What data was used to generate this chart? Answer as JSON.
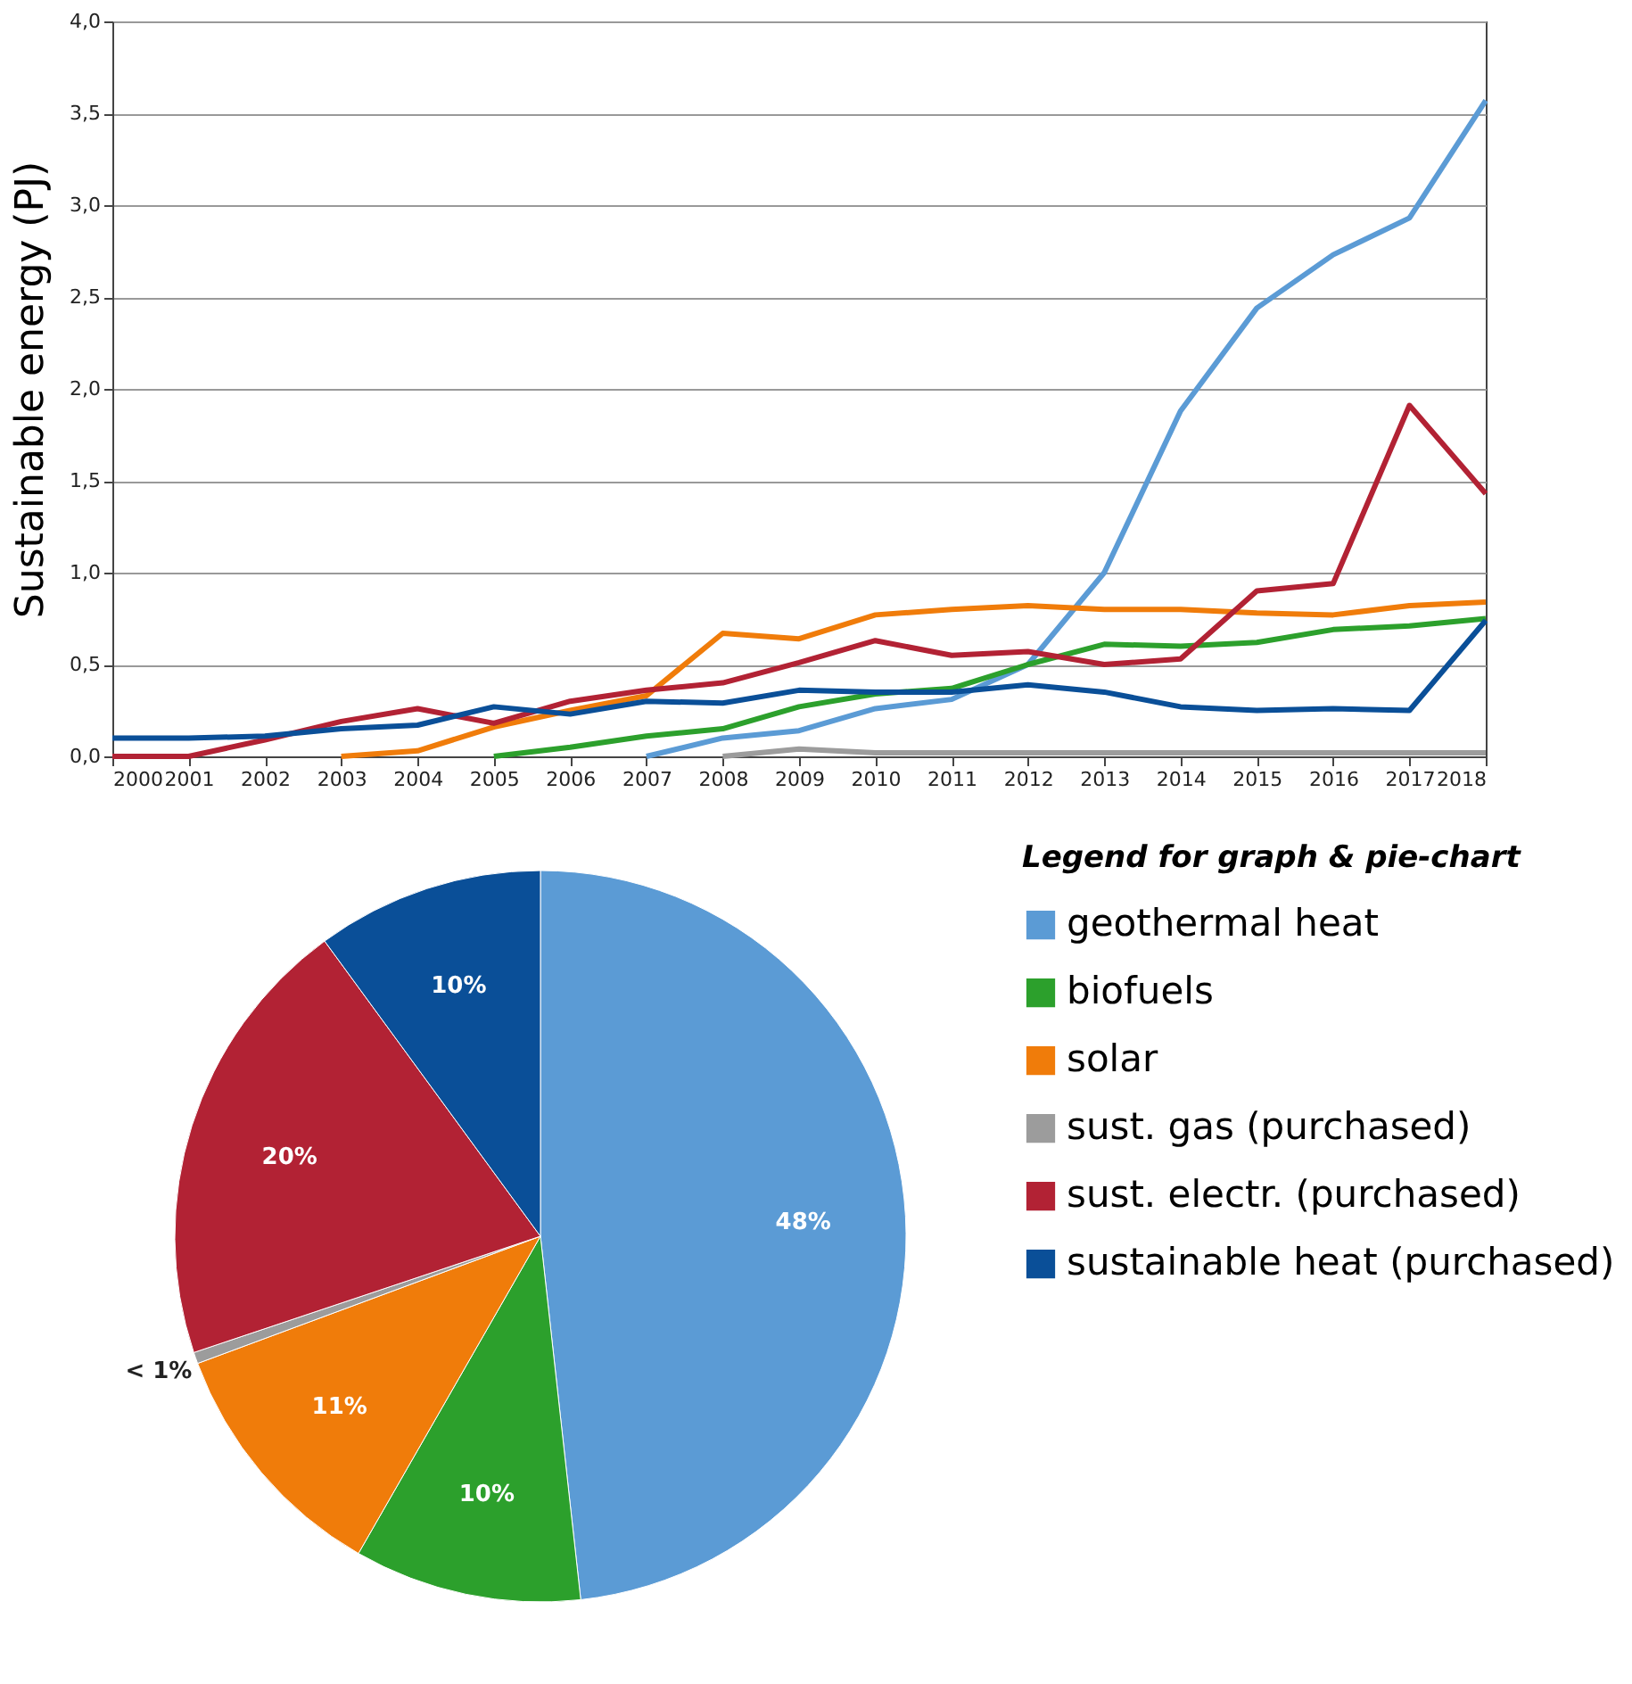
{
  "chart_data": [
    {
      "type": "line",
      "ylabel": "Sustainable energy (PJ)",
      "x": [
        2000,
        2001,
        2002,
        2003,
        2004,
        2005,
        2006,
        2007,
        2008,
        2009,
        2010,
        2011,
        2012,
        2013,
        2014,
        2015,
        2016,
        2017,
        2018
      ],
      "series": [
        {
          "name": "geothermal heat",
          "color": "#5b9bd5",
          "values": [
            null,
            null,
            null,
            null,
            null,
            null,
            null,
            0,
            0.1,
            0.14,
            0.26,
            0.31,
            0.5,
            1.0,
            1.88,
            2.44,
            2.73,
            2.93,
            3.57
          ]
        },
        {
          "name": "biofuels",
          "color": "#2ca02c",
          "values": [
            null,
            null,
            null,
            null,
            null,
            0,
            0.05,
            0.11,
            0.15,
            0.27,
            0.34,
            0.37,
            0.5,
            0.61,
            0.6,
            0.62,
            0.69,
            0.71,
            0.75
          ]
        },
        {
          "name": "solar",
          "color": "#f07c0a",
          "values": [
            null,
            null,
            null,
            0,
            0.03,
            0.16,
            0.25,
            0.33,
            0.67,
            0.64,
            0.77,
            0.8,
            0.82,
            0.8,
            0.8,
            0.78,
            0.77,
            0.82,
            0.84
          ]
        },
        {
          "name": "sust. gas (purchased)",
          "color": "#9c9c9c",
          "values": [
            null,
            null,
            null,
            null,
            null,
            null,
            null,
            null,
            0,
            0.04,
            0.02,
            0.02,
            0.02,
            0.02,
            0.02,
            0.02,
            0.02,
            0.02,
            0.02
          ]
        },
        {
          "name": "sust. electr. (purchased)",
          "color": "#b22234",
          "values": [
            0,
            0,
            0.09,
            0.19,
            0.26,
            0.18,
            0.3,
            0.36,
            0.4,
            0.51,
            0.63,
            0.55,
            0.57,
            0.5,
            0.53,
            0.9,
            0.94,
            1.91,
            1.43
          ]
        },
        {
          "name": "sustainable heat (purchased)",
          "color": "#0a4f98",
          "values": [
            0.1,
            0.1,
            0.11,
            0.15,
            0.17,
            0.27,
            0.23,
            0.3,
            0.29,
            0.36,
            0.35,
            0.35,
            0.39,
            0.35,
            0.27,
            0.25,
            0.26,
            0.25,
            0.74
          ]
        }
      ],
      "xlim": [
        2000,
        2018
      ],
      "xticks": [
        2000,
        2001,
        2002,
        2003,
        2004,
        2005,
        2006,
        2007,
        2008,
        2009,
        2010,
        2011,
        2012,
        2013,
        2014,
        2015,
        2016,
        2017,
        2018
      ],
      "ylim": [
        0,
        4
      ],
      "yticks": [
        {
          "value": 0,
          "label": "0,0"
        },
        {
          "value": 0.5,
          "label": "0,5"
        },
        {
          "value": 1,
          "label": "1,0"
        },
        {
          "value": 1.5,
          "label": "1,5"
        },
        {
          "value": 2,
          "label": "2,0"
        },
        {
          "value": 2.5,
          "label": "2,5"
        },
        {
          "value": 3,
          "label": "3,0"
        },
        {
          "value": 3.5,
          "label": "3,5"
        },
        {
          "value": 4,
          "label": "4,0"
        }
      ],
      "grid": "y",
      "line_style": "solid",
      "marker": "none",
      "legend": "bottom right",
      "legend_title": "Legend for graph & pie-chart"
    },
    {
      "type": "pie",
      "categories": [
        null,
        null,
        null,
        null,
        null,
        null
      ],
      "values": [
        48,
        10,
        11,
        0.5,
        20,
        10
      ],
      "value_labels": [
        "48%",
        "10%",
        "11%",
        "< 1%",
        "20%",
        "10%"
      ],
      "colors": [
        "#5b9bd5",
        "#2ca02c",
        "#f07c0a",
        "#9c9c9c",
        "#b22234",
        "#0a4f98"
      ]
    }
  ]
}
